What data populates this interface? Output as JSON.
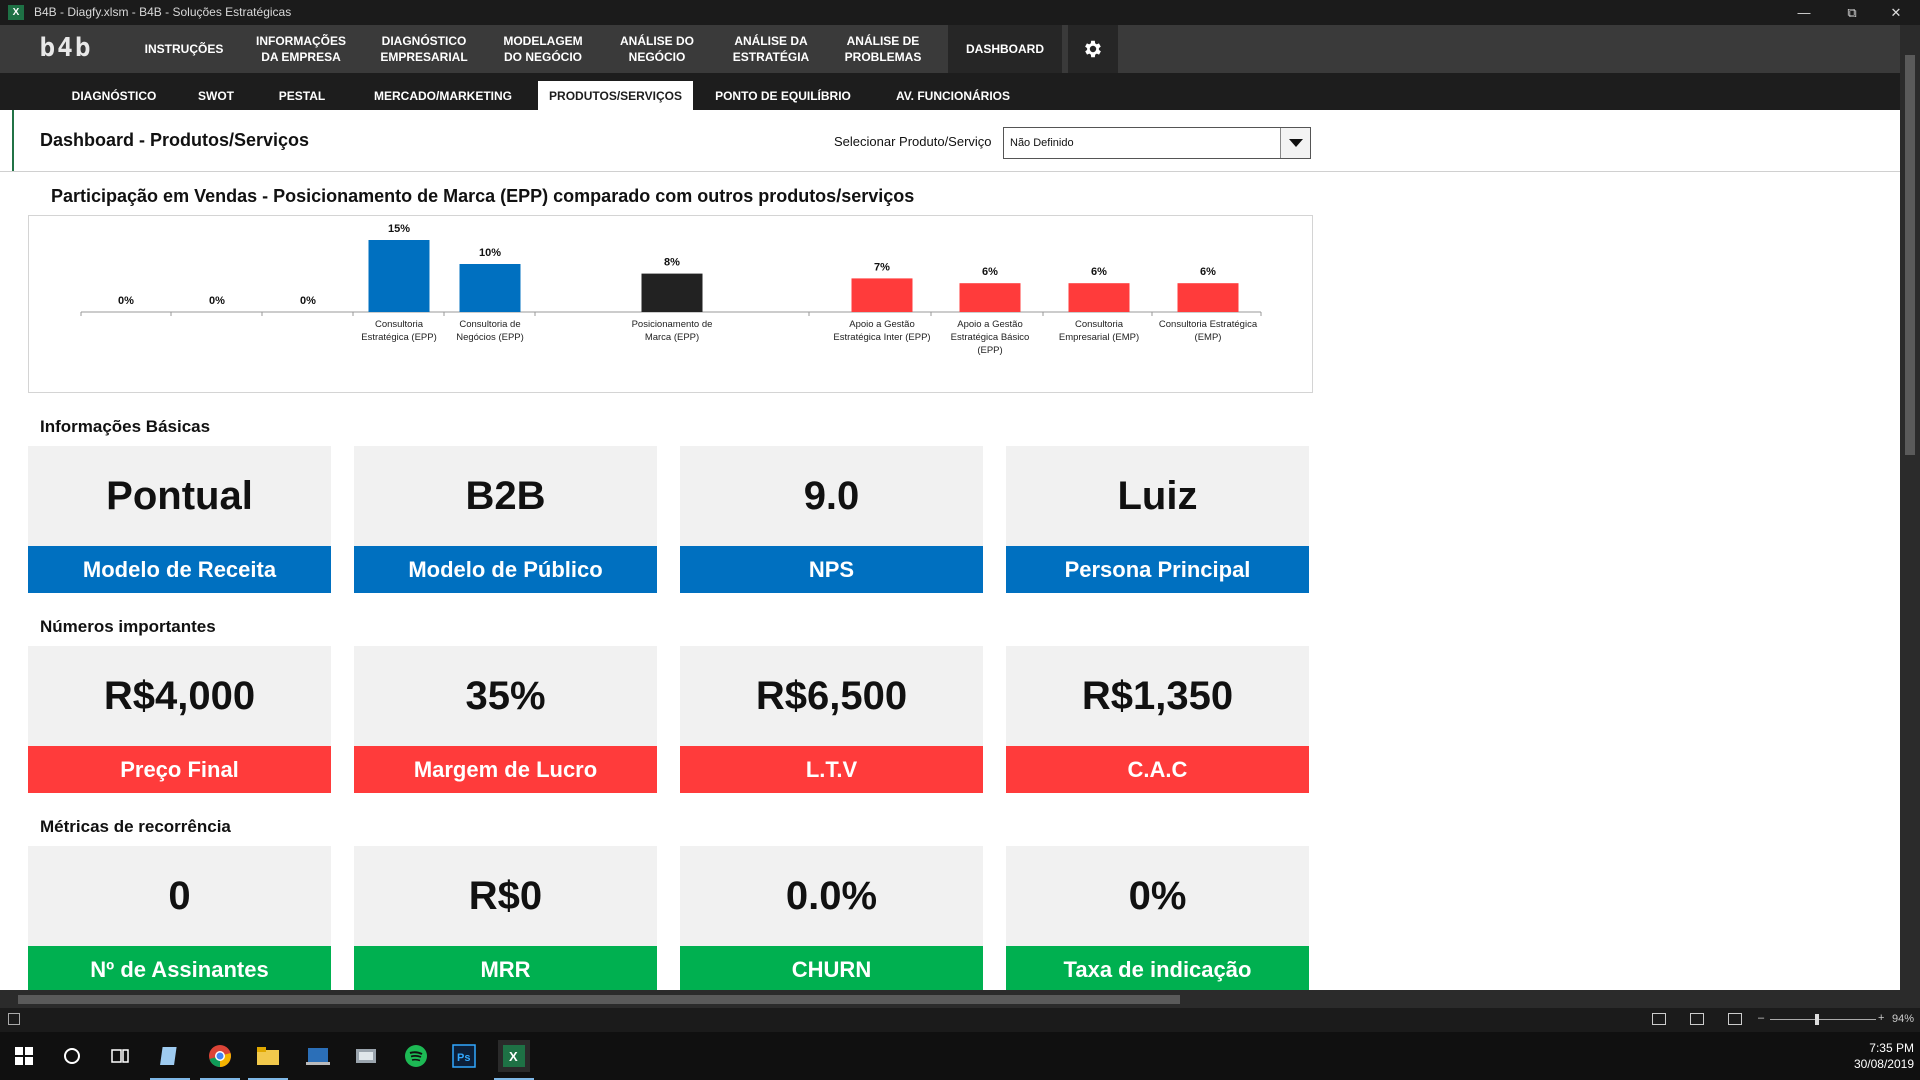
{
  "window": {
    "title": "B4B - Diagfy.xlsm - B4B - Soluções Estratégicas",
    "app_icon": "X"
  },
  "topnav": {
    "logo": "b4b",
    "items": [
      {
        "label": "INSTRUÇÕES"
      },
      {
        "label": "INFORMAÇÕES\nDA EMPRESA"
      },
      {
        "label": "DIAGNÓSTICO\nEMPRESARIAL"
      },
      {
        "label": "MODELAGEM\nDO NEGÓCIO"
      },
      {
        "label": "ANÁLISE DO\nNEGÓCIO"
      },
      {
        "label": "ANÁLISE DA\nESTRATÉGIA"
      },
      {
        "label": "ANÁLISE DE\nPROBLEMAS"
      },
      {
        "label": "DASHBOARD"
      }
    ],
    "active_index": 7
  },
  "subnav": {
    "items": [
      "DIAGNÓSTICO",
      "SWOT",
      "PESTAL",
      "MERCADO/MARKETING",
      "PRODUTOS/SERVIÇOS",
      "PONTO DE EQUILÍBRIO",
      "AV. FUNCIONÁRIOS"
    ],
    "active_index": 4
  },
  "header": {
    "page_title": "Dashboard - Produtos/Serviços",
    "selector_label": "Selecionar Produto/Serviço",
    "selector_value": "Não Definido"
  },
  "chart_data": {
    "type": "bar",
    "title": "Participação em Vendas - Posicionamento de Marca (EPP) comparado com outros produtos/serviços",
    "categories": [
      "",
      "",
      "",
      "Consultoria\nEstratégica (EPP)",
      "Consultoria de\nNegócios (EPP)",
      "",
      "Posicionamento de\nMarca (EPP)",
      "",
      "Apoio a Gestão\nEstratégica Inter (EPP)",
      "Apoio a Gestão\nEstratégica Básico\n(EPP)",
      "Consultoria\nEmpresarial (EMP)",
      "Consultoria Estratégica\n(EMP)"
    ],
    "values": [
      0,
      0,
      0,
      15,
      10,
      0,
      8,
      0,
      7,
      6,
      6,
      6
    ],
    "data_labels": [
      "0%",
      "0%",
      "0%",
      "15%",
      "10%",
      "",
      "8%",
      "",
      "7%",
      "6%",
      "6%",
      "6%"
    ],
    "colors": [
      "#0070c0",
      "#0070c0",
      "#0070c0",
      "#0070c0",
      "#0070c0",
      "#0070c0",
      "#222222",
      "#ff3b3b",
      "#ff3b3b",
      "#ff3b3b",
      "#ff3b3b",
      "#ff3b3b"
    ],
    "ylim": [
      0,
      15
    ],
    "unit": "%"
  },
  "sections": {
    "basic": {
      "title": "Informações Básicas",
      "color": "#0070c0",
      "cards": [
        {
          "value": "Pontual",
          "label": "Modelo de Receita"
        },
        {
          "value": "B2B",
          "label": "Modelo de Público"
        },
        {
          "value": "9.0",
          "label": "NPS"
        },
        {
          "value": "Luiz",
          "label": "Persona Principal"
        }
      ]
    },
    "numbers": {
      "title": "Números importantes",
      "color": "#ff3b3b",
      "cards": [
        {
          "value": "R$4,000",
          "label": "Preço Final"
        },
        {
          "value": "35%",
          "label": "Margem de Lucro"
        },
        {
          "value": "R$6,500",
          "label": "L.T.V"
        },
        {
          "value": "R$1,350",
          "label": "C.A.C"
        }
      ]
    },
    "recurrence": {
      "title": "Métricas de recorrência",
      "color": "#00b050",
      "cards": [
        {
          "value": "0",
          "label": "Nº de Assinantes"
        },
        {
          "value": "R$0",
          "label": "MRR"
        },
        {
          "value": "0.0%",
          "label": "CHURN"
        },
        {
          "value": "0%",
          "label": "Taxa de indicação"
        }
      ]
    }
  },
  "statusbar": {
    "zoom": "94%"
  },
  "taskbar": {
    "time": "7:35 PM",
    "date": "30/08/2019",
    "apps": [
      "windows-start-icon",
      "cortana-icon",
      "task-view-icon",
      "notepad-icon",
      "chrome-icon",
      "file-explorer-icon",
      "terminal-icon",
      "tools-icon",
      "spotify-icon",
      "photoshop-icon",
      "excel-icon"
    ]
  }
}
